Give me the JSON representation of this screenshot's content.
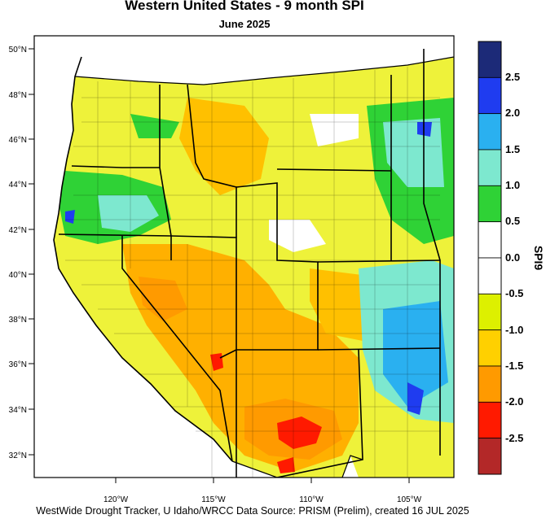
{
  "title": "Western United States - 9 month SPI",
  "subtitle": "June 2025",
  "footer": "WestWide Drought Tracker, U Idaho/WRCC Data Source: PRISM (Prelim), created 16 JUL 2025",
  "lat_labels": [
    "50°N",
    "48°N",
    "46°N",
    "44°N",
    "42°N",
    "40°N",
    "38°N",
    "36°N",
    "34°N",
    "32°N"
  ],
  "lon_labels": [
    "120°W",
    "115°W",
    "110°W",
    "105°W"
  ],
  "colorbar": {
    "title": "SPI9",
    "labels": [
      "2.5",
      "2.0",
      "1.5",
      "1.0",
      "0.5",
      "0.0",
      "-0.5",
      "-1.0",
      "-1.5",
      "-2.0",
      "-2.5"
    ],
    "colors": [
      "#1c2a78",
      "#1f3cf0",
      "#2ab0f0",
      "#7de8cf",
      "#2fd236",
      "#ffffff",
      "#ffffff",
      "#ddf000",
      "#ffd000",
      "#ff9a00",
      "#ff1a00",
      "#b32828"
    ]
  }
}
